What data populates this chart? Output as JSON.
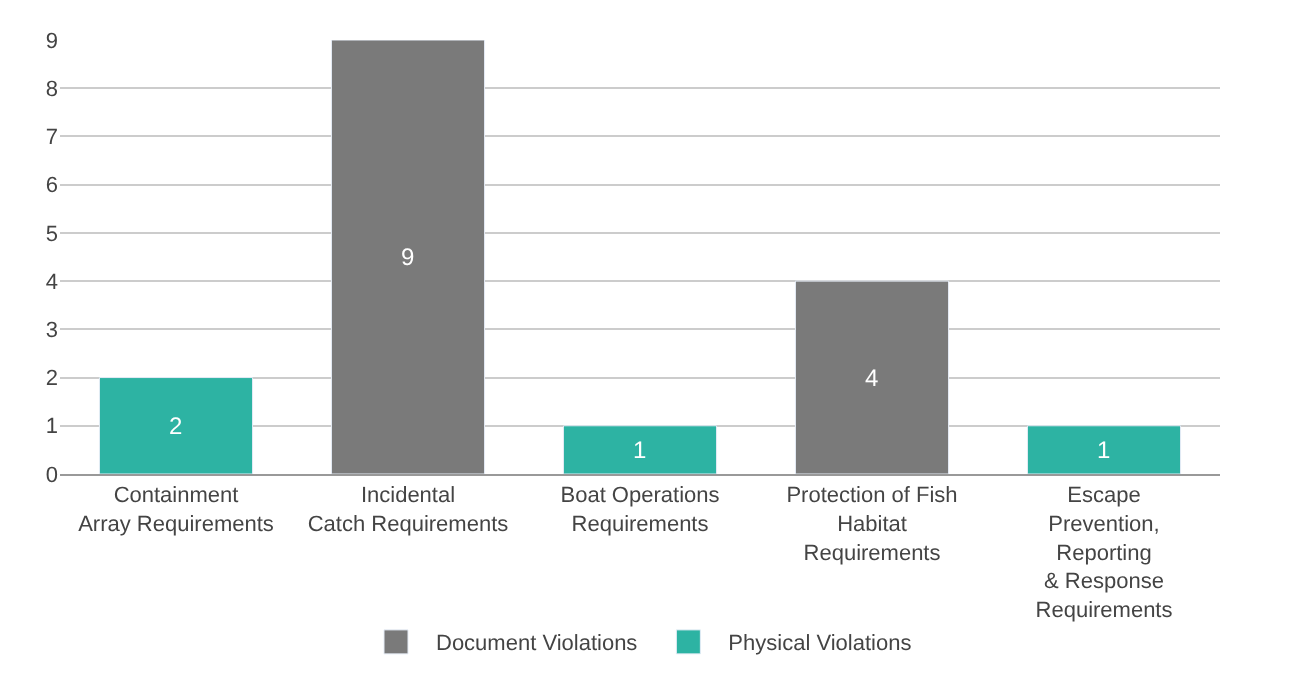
{
  "chart_data": {
    "type": "bar",
    "categories": [
      "Containment\nArray Requirements",
      "Incidental\nCatch Requirements",
      "Boat Operations\nRequirements",
      "Protection of Fish\nHabitat\nRequirements",
      "Escape\nPrevention,\nReporting\n& Response\nRequirements"
    ],
    "series": [
      {
        "name": "Document Violations",
        "color": "#7a7a7a",
        "values": [
          null,
          9,
          null,
          4,
          null
        ]
      },
      {
        "name": "Physical Violations",
        "color": "#2db3a3",
        "values": [
          2,
          null,
          1,
          null,
          1
        ]
      }
    ],
    "ylim": [
      0,
      9
    ],
    "yticks": [
      0,
      1,
      2,
      3,
      4,
      5,
      6,
      7,
      8,
      9
    ],
    "grid": "y",
    "legend": "bottom",
    "data_labels": true
  }
}
